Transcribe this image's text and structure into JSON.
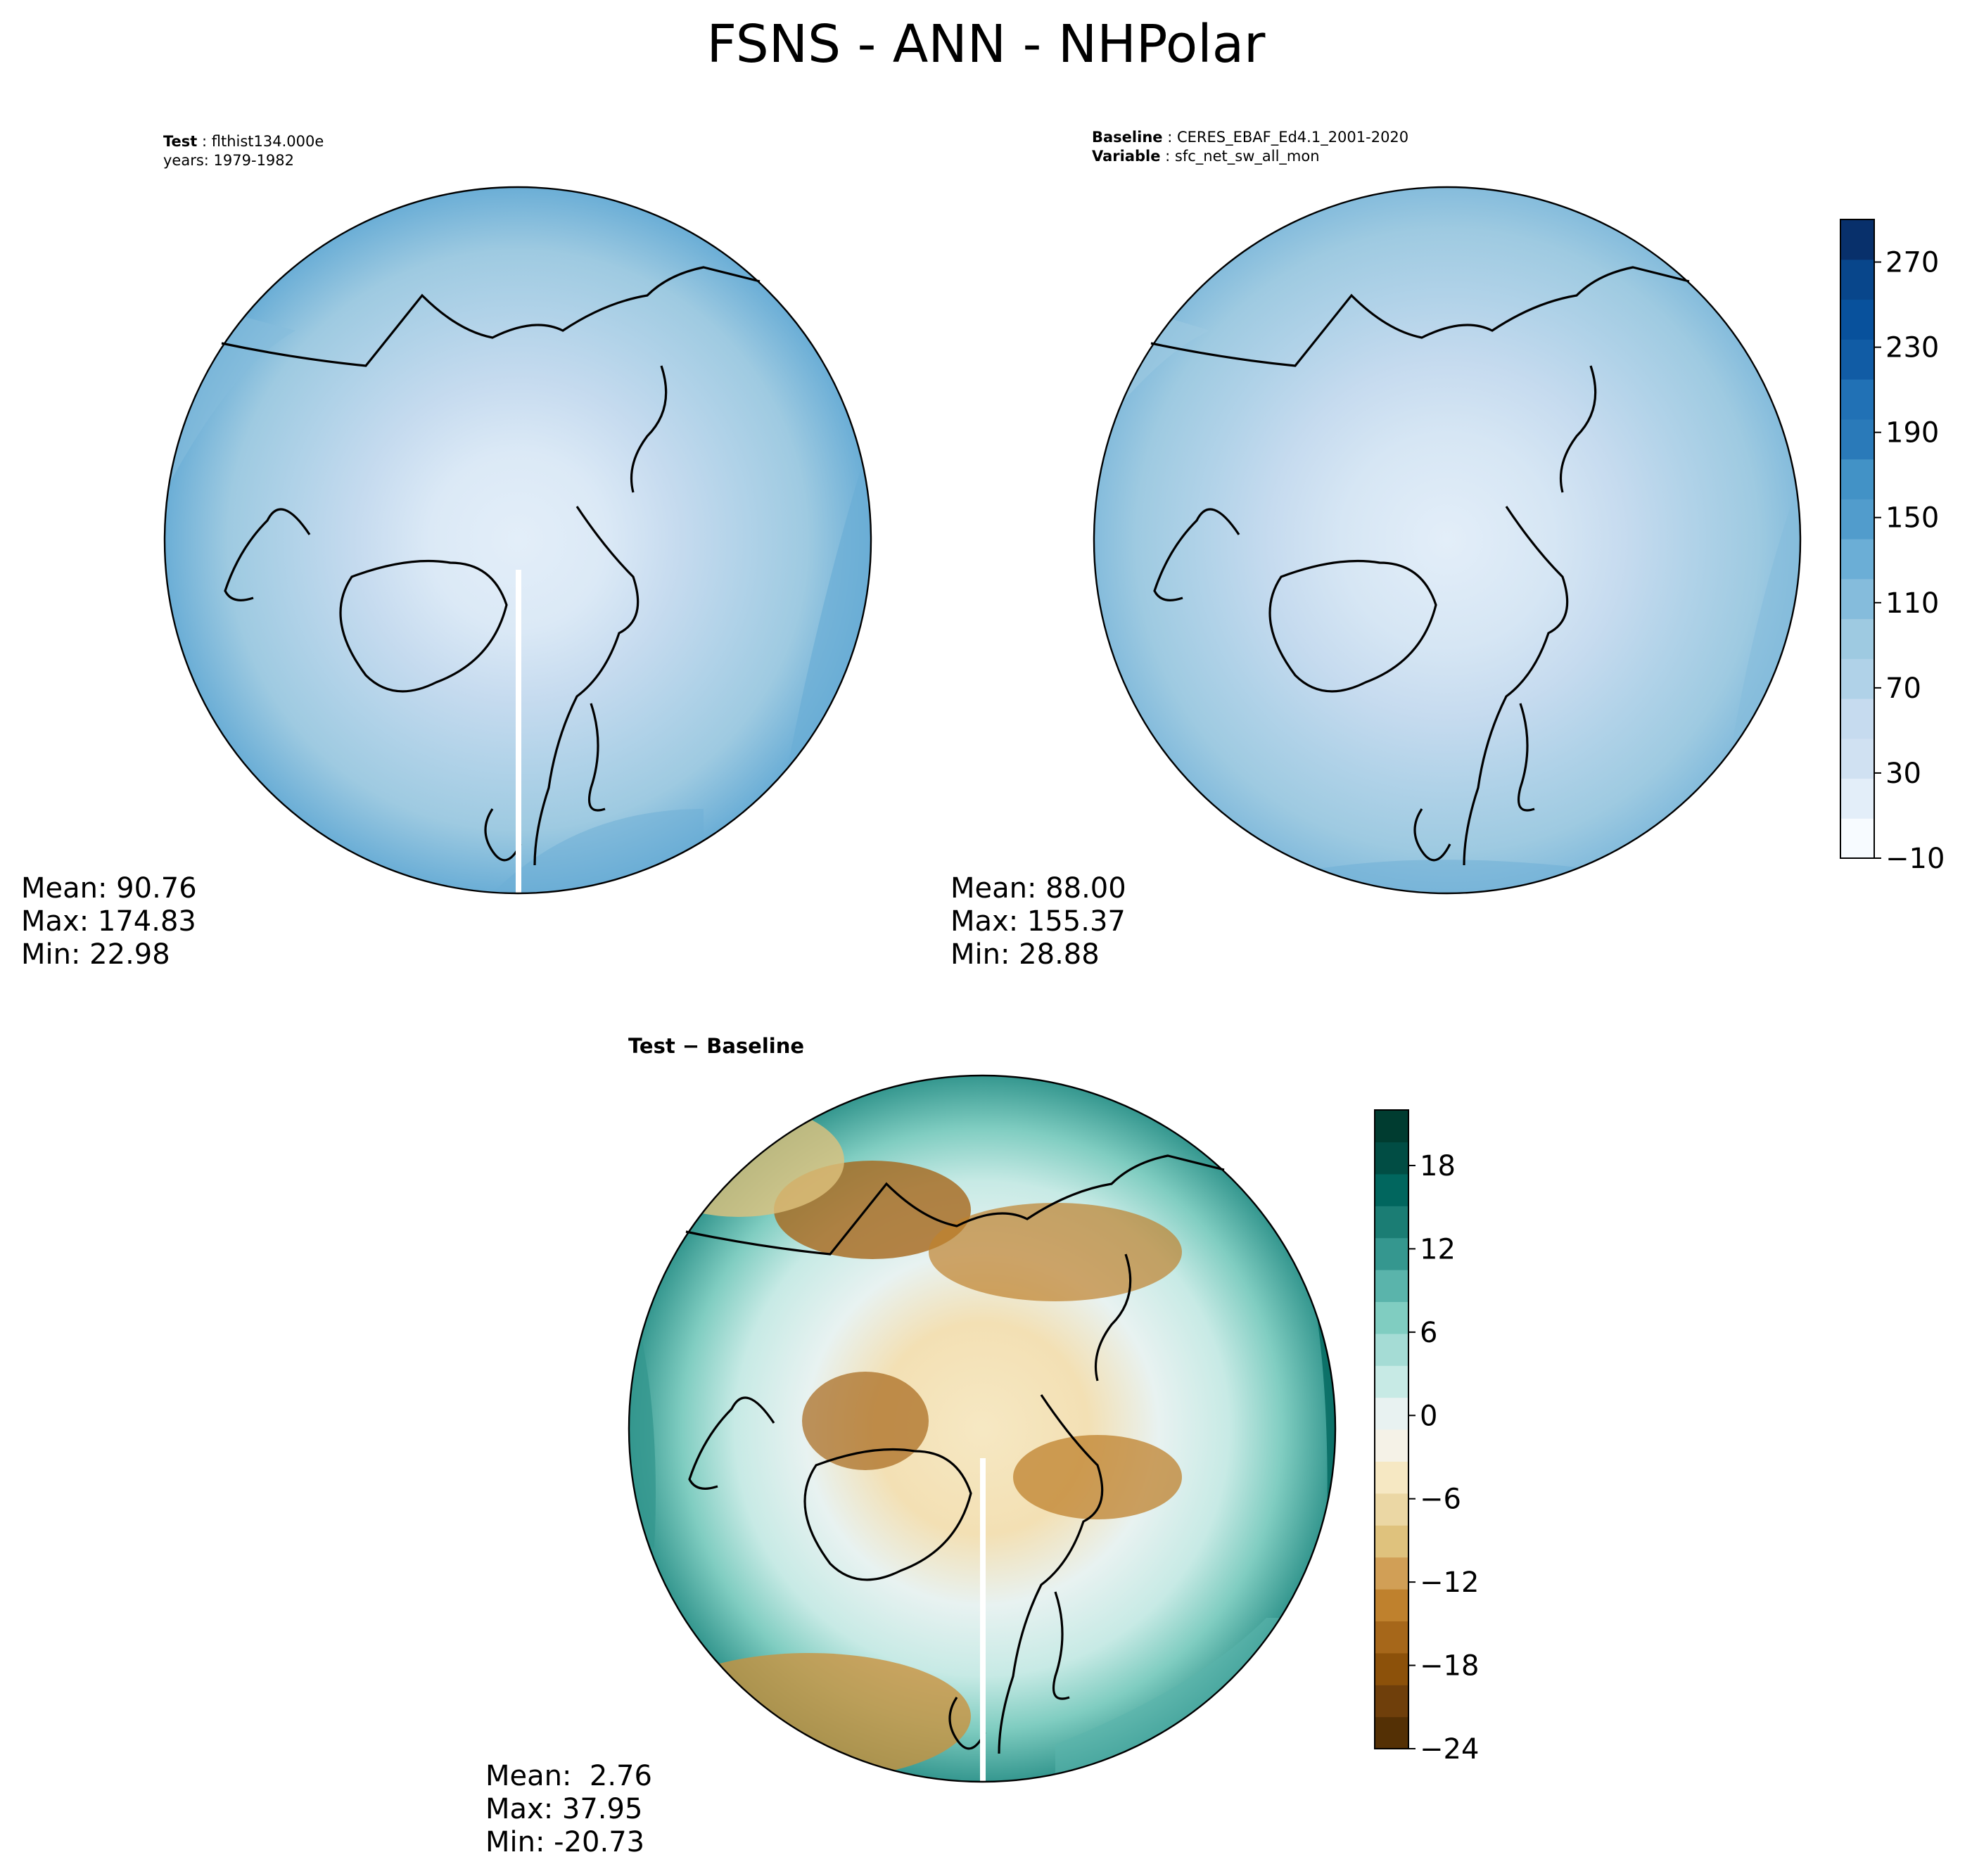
{
  "title": "FSNS - ANN - NHPolar",
  "panels": {
    "test": {
      "label_key": "Test",
      "label_value": "flthist134.000e",
      "line2": "years: 1979-1982",
      "mean": "Mean: 90.76",
      "max": "Max: 174.83",
      "min": "Min: 22.98"
    },
    "baseline": {
      "label_key": "Baseline",
      "label_value": "CERES_EBAF_Ed4.1_2001-2020",
      "var_key": "Variable",
      "var_value": "sfc_net_sw_all_mon",
      "mean": "Mean: 88.00",
      "max": "Max: 155.37",
      "min": "Min: 28.88"
    },
    "diff": {
      "title": "Test − Baseline",
      "mean": "Mean:  2.76",
      "max": "Max: 37.95",
      "min": "Min: -20.73"
    }
  },
  "colorbars": {
    "top": {
      "ticks": [
        "270",
        "230",
        "190",
        "150",
        "110",
        "70",
        "30",
        "−10"
      ],
      "colors": [
        "#f7fbff",
        "#e3eef9",
        "#d0e1f2",
        "#c6dbef",
        "#b0d2e8",
        "#9ecae1",
        "#85bcdc",
        "#6baed6",
        "#519ccc",
        "#4292c6",
        "#2a7ab9",
        "#2171b5",
        "#115ca5",
        "#08519c",
        "#08468b",
        "#08306b"
      ]
    },
    "diff": {
      "ticks": [
        "18",
        "12",
        "6",
        "0",
        "−6",
        "−12",
        "−18",
        "−24"
      ],
      "colors": [
        "#543005",
        "#6f3f0b",
        "#8c510a",
        "#a6671a",
        "#bf812d",
        "#d19f56",
        "#dfc27d",
        "#ebd7a4",
        "#f6e8c3",
        "#f5f2e7",
        "#e8f2f1",
        "#c7eae5",
        "#a5dcd5",
        "#80cdc1",
        "#5ab4ab",
        "#35978f",
        "#1b7d74",
        "#01665e",
        "#014d44",
        "#003c30"
      ]
    }
  },
  "legend_colors": {
    "coastline": "#000000",
    "missing_data": "#ffffff"
  }
}
